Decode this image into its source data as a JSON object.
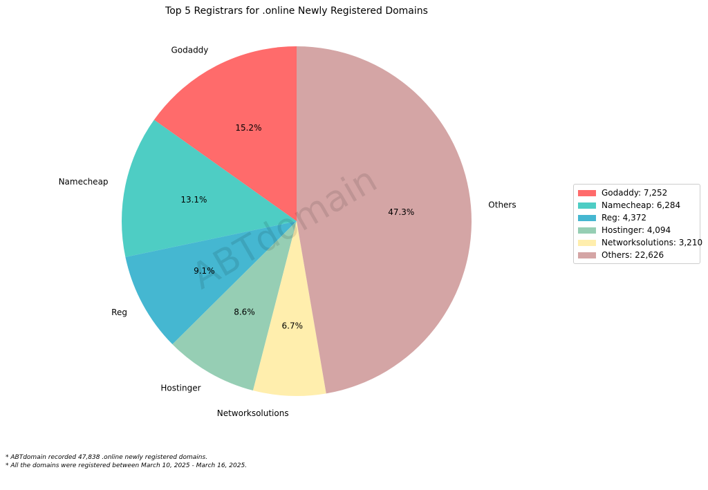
{
  "chart_data": {
    "type": "pie",
    "title": "Top 5 Registrars for .online Newly Registered Domains",
    "categories": [
      "Godaddy",
      "Namecheap",
      "Reg",
      "Hostinger",
      "Networksolutions",
      "Others"
    ],
    "values": [
      7252,
      6284,
      4372,
      4094,
      3210,
      22626
    ],
    "percent_labels": [
      "15.2%",
      "13.1%",
      "9.1%",
      "8.6%",
      "6.7%",
      "47.3%"
    ],
    "legend_labels": [
      "Godaddy: 7,252",
      "Namecheap: 6,284",
      "Reg: 4,372",
      "Hostinger: 4,094",
      "Networksolutions: 3,210",
      "Others: 22,626"
    ],
    "colors": [
      "#ff6b6b",
      "#4ecdc4",
      "#45b7d1",
      "#96ceb4",
      "#ffeead",
      "#d4a5a5"
    ],
    "legend_position": "right",
    "start_angle": "top",
    "direction": "counterclockwise",
    "watermark": "ABTdomain"
  },
  "footnotes": [
    "* ABTdomain recorded 47,838 .online newly registered domains.",
    "* All the domains were registered between March 10, 2025 - March 16, 2025."
  ]
}
